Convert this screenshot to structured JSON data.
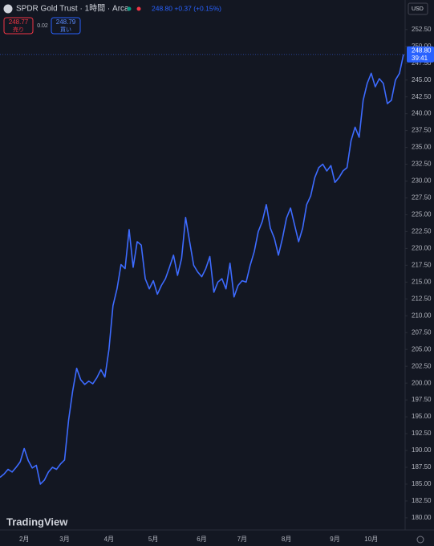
{
  "chart_data": {
    "type": "line",
    "title": "SPDR Gold Trust · 1時間 · Arca",
    "quote": "248.80 +0.37 (+0.15%)",
    "sell_price": "248.77",
    "sell_label": "売り",
    "spread": "0.02",
    "buy_price": "248.79",
    "buy_label": "買い",
    "currency": "USD",
    "price_label": "248.80",
    "countdown": "39:41",
    "watermark": "TradingView",
    "categories": [
      null,
      null,
      null,
      null,
      null,
      null,
      "2月",
      null,
      null,
      null,
      null,
      null,
      null,
      null,
      null,
      null,
      "3月",
      null,
      null,
      null,
      null,
      null,
      null,
      null,
      null,
      null,
      null,
      "4月",
      null,
      null,
      null,
      null,
      null,
      null,
      null,
      null,
      null,
      null,
      "5月",
      null,
      null,
      null,
      null,
      null,
      null,
      null,
      null,
      null,
      null,
      null,
      "6月",
      null,
      null,
      null,
      null,
      null,
      null,
      null,
      null,
      null,
      "7月",
      null,
      null,
      null,
      null,
      null,
      null,
      null,
      null,
      null,
      null,
      "8月",
      null,
      null,
      null,
      null,
      null,
      null,
      null,
      null,
      null,
      null,
      null,
      "9月",
      null,
      null,
      null,
      null,
      null,
      null,
      null,
      null,
      "10月",
      null,
      null,
      null,
      null,
      null,
      null,
      null,
      null
    ],
    "series": [
      {
        "name": "SPDR Gold Trust",
        "color": "#3d6bff",
        "values": [
          186.0,
          186.5,
          187.2,
          186.8,
          187.5,
          188.3,
          190.3,
          188.5,
          187.4,
          187.8,
          185.0,
          185.6,
          186.8,
          187.5,
          187.2,
          188.0,
          188.6,
          194.5,
          198.8,
          202.2,
          200.5,
          199.8,
          200.3,
          199.9,
          200.8,
          202.0,
          200.9,
          205.0,
          211.5,
          214.0,
          217.6,
          217.0,
          222.8,
          217.2,
          221.0,
          220.5,
          215.5,
          214.0,
          215.2,
          213.2,
          214.5,
          215.5,
          217.2,
          219.0,
          216.0,
          218.5,
          224.6,
          221.0,
          217.5,
          216.5,
          215.8,
          217.0,
          218.8,
          213.5,
          215.0,
          215.5,
          214.0,
          217.8,
          212.8,
          214.5,
          215.2,
          215.0,
          217.5,
          219.5,
          222.5,
          224.0,
          226.5,
          223.0,
          221.5,
          219.0,
          221.5,
          224.5,
          226.0,
          223.5,
          221.0,
          223.0,
          226.5,
          227.8,
          230.5,
          232.0,
          232.5,
          231.5,
          232.3,
          229.8,
          230.5,
          231.5,
          232.0,
          236.0,
          238.0,
          236.5,
          242.0,
          244.5,
          246.0,
          244.0,
          245.2,
          244.5,
          241.5,
          242.0,
          245.0,
          246.0,
          248.8
        ]
      }
    ],
    "ylim": [
      178.2,
      254.5
    ],
    "yticks": [
      {
        "value": 180,
        "label": "180.00"
      },
      {
        "value": 182.5,
        "label": "182.50"
      },
      {
        "value": 185,
        "label": "185.00"
      },
      {
        "value": 187.5,
        "label": "187.50"
      },
      {
        "value": 190,
        "label": "190.00"
      },
      {
        "value": 192.5,
        "label": "192.50"
      },
      {
        "value": 195,
        "label": "195.00"
      },
      {
        "value": 197.5,
        "label": "197.50"
      },
      {
        "value": 200,
        "label": "200.00"
      },
      {
        "value": 202.5,
        "label": "202.50"
      },
      {
        "value": 205,
        "label": "205.00"
      },
      {
        "value": 207.5,
        "label": "207.50"
      },
      {
        "value": 210,
        "label": "210.00"
      },
      {
        "value": 212.5,
        "label": "212.50"
      },
      {
        "value": 215,
        "label": "215.00"
      },
      {
        "value": 217.5,
        "label": "217.50"
      },
      {
        "value": 220,
        "label": "220.00"
      },
      {
        "value": 222.5,
        "label": "222.50"
      },
      {
        "value": 225,
        "label": "225.00"
      },
      {
        "value": 227.5,
        "label": "227.50"
      },
      {
        "value": 230,
        "label": "230.00"
      },
      {
        "value": 232.5,
        "label": "232.50"
      },
      {
        "value": 235,
        "label": "235.00"
      },
      {
        "value": 237.5,
        "label": "237.50"
      },
      {
        "value": 240,
        "label": "240.00"
      },
      {
        "value": 242.5,
        "label": "242.50"
      },
      {
        "value": 245,
        "label": "245.00"
      },
      {
        "value": 247.5,
        "label": "247.50"
      },
      {
        "value": 250,
        "label": "250.00"
      },
      {
        "value": 252.5,
        "label": "252.50"
      }
    ],
    "grid": false
  }
}
